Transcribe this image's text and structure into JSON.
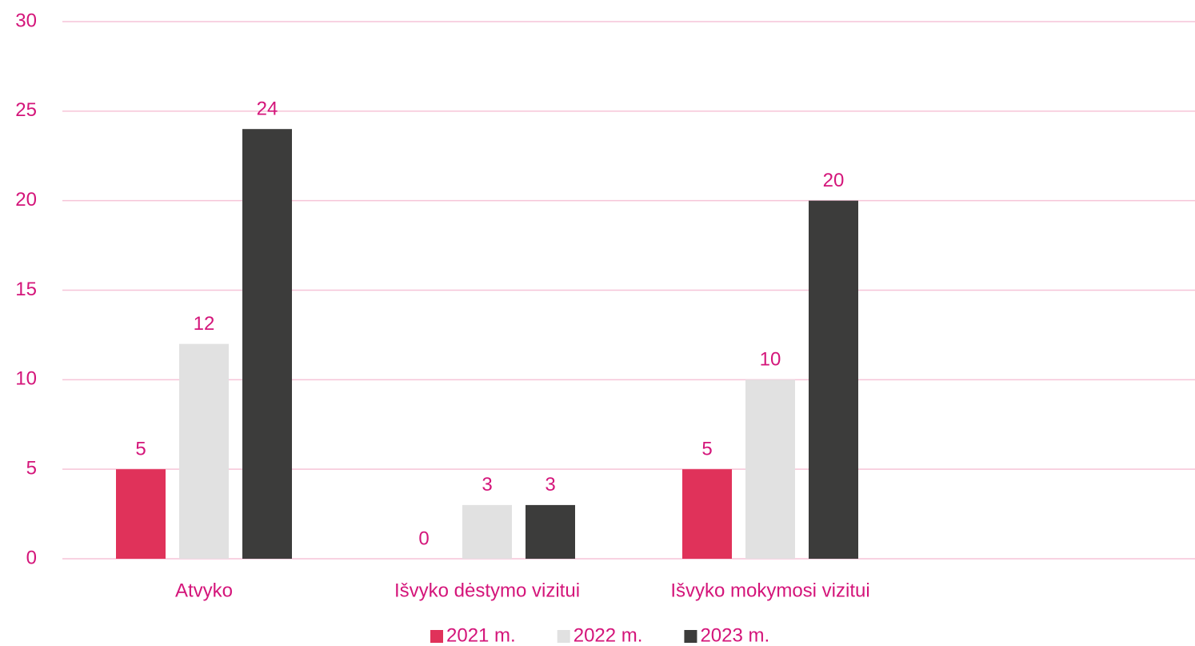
{
  "chart_data": {
    "type": "bar",
    "categories": [
      "Atvyko",
      "Išvyko dėstymo vizitui",
      "Išvyko mokymosi vizitui",
      null
    ],
    "series": [
      {
        "name": "2021 m.",
        "color": "#e0325a",
        "values": [
          5,
          0,
          5,
          null
        ]
      },
      {
        "name": "2022 m.",
        "color": "#e1e1e1",
        "values": [
          12,
          3,
          10,
          null
        ]
      },
      {
        "name": "2023 m.",
        "color": "#3c3c3b",
        "values": [
          24,
          3,
          20,
          null
        ]
      }
    ],
    "ylim": [
      0,
      30
    ],
    "yticks": [
      0,
      5,
      10,
      15,
      20,
      25,
      30
    ],
    "grid": true,
    "legend": "bottom"
  }
}
